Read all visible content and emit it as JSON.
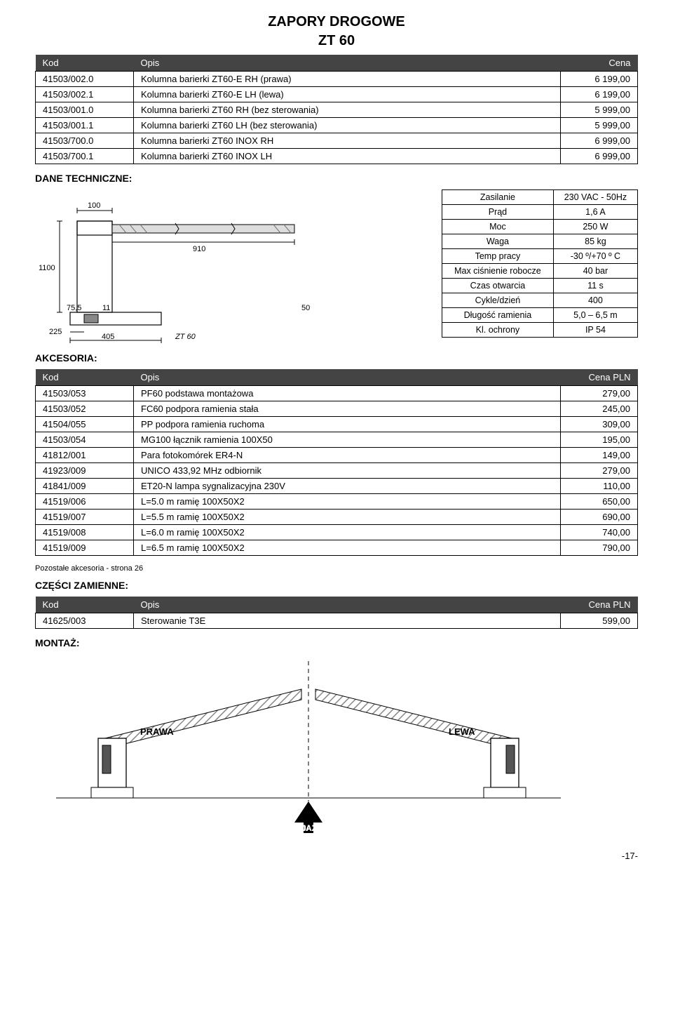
{
  "header": {
    "title": "ZAPORY DROGOWE",
    "subtitle": "ZT 60"
  },
  "main_table": {
    "headers": [
      "Kod",
      "Opis",
      "Cena"
    ],
    "rows": [
      [
        "41503/002.0",
        "Kolumna barierki ZT60-E RH (prawa)",
        "6 199,00"
      ],
      [
        "41503/002.1",
        "Kolumna barierki ZT60-E LH (lewa)",
        "6 199,00"
      ],
      [
        "41503/001.0",
        "Kolumna barierki ZT60 RH (bez sterowania)",
        "5 999,00"
      ],
      [
        "41503/001.1",
        "Kolumna barierki ZT60 LH (bez sterowania)",
        "5 999,00"
      ],
      [
        "41503/700.0",
        "Kolumna barierki ZT60 INOX RH",
        "6 999,00"
      ],
      [
        "41503/700.1",
        "Kolumna barierki ZT60 INOX LH",
        "6 999,00"
      ]
    ]
  },
  "tech_label": "DANE TECHNICZNE:",
  "tech_diagram": {
    "dims": {
      "top_width": "100",
      "arm_length": "910",
      "height": "1100",
      "base_left": "75,5",
      "base_gap": "11",
      "base_right": "50",
      "bottom_left": "225",
      "bottom_width": "405",
      "label": "ZT 60"
    }
  },
  "spec": {
    "rows": [
      [
        "Zasilanie",
        "230 VAC - 50Hz"
      ],
      [
        "Prąd",
        "1,6 A"
      ],
      [
        "Moc",
        "250 W"
      ],
      [
        "Waga",
        "85 kg"
      ],
      [
        "Temp pracy",
        "-30 º/+70 º C"
      ],
      [
        "Max ciśnienie robocze",
        "40 bar"
      ],
      [
        "Czas otwarcia",
        "11 s"
      ],
      [
        "Cykle/dzień",
        "400"
      ],
      [
        "Długość ramienia",
        "5,0 – 6,5 m"
      ],
      [
        "Kl. ochrony",
        "IP 54"
      ]
    ]
  },
  "akcesoria_label": "AKCESORIA:",
  "akcesoria_table": {
    "headers": [
      "Kod",
      "Opis",
      "Cena PLN"
    ],
    "rows": [
      [
        "41503/053",
        "PF60 podstawa montażowa",
        "279,00"
      ],
      [
        "41503/052",
        "FC60 podpora ramienia stała",
        "245,00"
      ],
      [
        "41504/055",
        "PP podpora ramienia ruchoma",
        "309,00"
      ],
      [
        "41503/054",
        "MG100 łącznik ramienia 100X50",
        "195,00"
      ],
      [
        "41812/001",
        "Para fotokomórek ER4-N",
        "149,00"
      ],
      [
        "41923/009",
        "UNICO 433,92 MHz odbiornik",
        "279,00"
      ],
      [
        "41841/009",
        "ET20-N lampa sygnalizacyjna 230V",
        "110,00"
      ],
      [
        "41519/006",
        "L=5.0 m ramię 100X50X2",
        "650,00"
      ],
      [
        "41519/007",
        "L=5.5 m ramię 100X50X2",
        "690,00"
      ],
      [
        "41519/008",
        "L=6.0 m ramię 100X50X2",
        "740,00"
      ],
      [
        "41519/009",
        "L=6.5 m ramię 100X50X2",
        "790,00"
      ]
    ]
  },
  "note": "Pozostałe akcesoria - strona 26",
  "parts_label": "CZĘŚCI ZAMIENNE:",
  "parts_table": {
    "headers": [
      "Kod",
      "Opis",
      "Cena PLN"
    ],
    "rows": [
      [
        "41625/003",
        "Sterowanie T3E",
        "599,00"
      ]
    ]
  },
  "mount_label": "MONTAŻ:",
  "mount_diagram": {
    "left_label": "PRAWA",
    "right_label": "LEWA",
    "exit_label": "WYJAZD"
  },
  "page_num": "-17-",
  "colors": {
    "header_bg": "#444444",
    "header_fg": "#ffffff",
    "border": "#000000",
    "hatch": "#999999"
  }
}
